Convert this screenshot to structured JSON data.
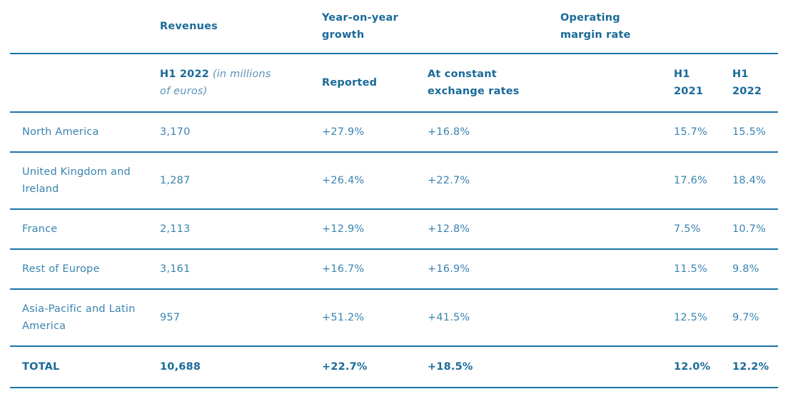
{
  "header": {
    "revenues": "Revenues",
    "growth_line1": "Year-on-year",
    "growth_line2": "growth",
    "margin_line1": "Operating",
    "margin_line2": "margin rate"
  },
  "subheader": {
    "h1_2022_bold": "H1 2022",
    "h1_2022_italic": " (in millions",
    "h1_2022_italic2": "of euros)",
    "reported": "Reported",
    "constant_line1": "At constant",
    "constant_line2": "exchange rates",
    "h1_2021_line1": "H1",
    "h1_2021_line2": "2021",
    "h1_2022_line1": "H1",
    "h1_2022_line2": "2022"
  },
  "rows": [
    {
      "region_line1": "North America",
      "region_line2": "",
      "revenues": "3,170",
      "reported": "+27.9%",
      "constant": "+16.8%",
      "margin_2021": "15.7%",
      "margin_2022": "15.5%"
    },
    {
      "region_line1": "United Kingdom and",
      "region_line2": "Ireland",
      "revenues": "1,287",
      "reported": "+26.4%",
      "constant": "+22.7%",
      "margin_2021": "17.6%",
      "margin_2022": "18.4%"
    },
    {
      "region_line1": "France",
      "region_line2": "",
      "revenues": "2,113",
      "reported": "+12.9%",
      "constant": "+12.8%",
      "margin_2021": "7.5%",
      "margin_2022": "10.7%"
    },
    {
      "region_line1": "Rest of Europe",
      "region_line2": "",
      "revenues": "3,161",
      "reported": "+16.7%",
      "constant": "+16.9%",
      "margin_2021": "11.5%",
      "margin_2022": "9.8%"
    },
    {
      "region_line1": "Asia-Pacific and Latin",
      "region_line2": "America",
      "revenues": "957",
      "reported": "+51.2%",
      "constant": "+41.5%",
      "margin_2021": "12.5%",
      "margin_2022": "9.7%"
    }
  ],
  "total": {
    "label": "TOTAL",
    "revenues": "10,688",
    "reported": "+22.7%",
    "constant": "+18.5%",
    "margin_2021": "12.0%",
    "margin_2022": "12.2%"
  }
}
